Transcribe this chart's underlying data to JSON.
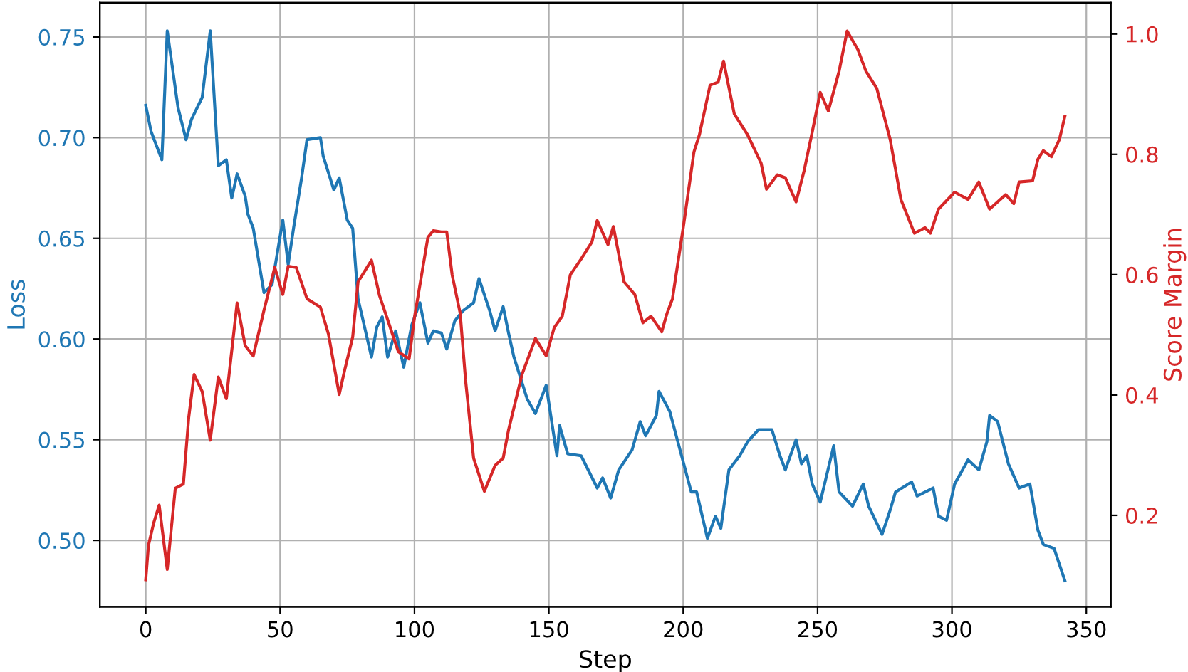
{
  "chart_data": {
    "type": "line",
    "xlabel": "Step",
    "ylabel": "Loss",
    "y2label": "Score Margin",
    "grid": true,
    "line_style": "solid",
    "marker": "none",
    "xlim": [
      -17.1,
      359.1
    ],
    "xticks": [
      0,
      50,
      100,
      150,
      200,
      250,
      300,
      350
    ],
    "ylim": [
      0.467,
      0.767
    ],
    "yticks": [
      {
        "value": 0.5,
        "label": "0.50"
      },
      {
        "value": 0.55,
        "label": "0.55"
      },
      {
        "value": 0.6,
        "label": "0.60"
      },
      {
        "value": 0.65,
        "label": "0.65"
      },
      {
        "value": 0.7,
        "label": "0.70"
      },
      {
        "value": 0.75,
        "label": "0.75"
      }
    ],
    "y2lim": [
      0.048,
      1.052
    ],
    "y2ticks": [
      {
        "value": 0.2,
        "label": "0.2"
      },
      {
        "value": 0.4,
        "label": "0.4"
      },
      {
        "value": 0.6,
        "label": "0.6"
      },
      {
        "value": 0.8,
        "label": "0.8"
      },
      {
        "value": 1.0,
        "label": "1.0"
      }
    ],
    "series": [
      {
        "color": "#1f77b4",
        "axis": "y",
        "x": [
          0,
          2,
          6,
          8,
          12,
          15,
          17,
          21,
          24,
          27,
          30,
          32,
          34,
          37,
          38,
          40,
          44,
          47,
          51,
          53,
          55,
          58,
          60,
          65,
          66,
          70,
          72,
          75,
          77,
          79,
          84,
          86,
          88,
          90,
          93,
          96,
          99,
          102,
          105,
          107,
          110,
          112,
          115,
          118,
          122,
          124,
          128,
          130,
          133,
          135,
          137,
          142,
          145,
          149,
          153,
          154,
          157,
          162,
          168,
          170,
          173,
          176,
          181,
          184,
          186,
          190,
          191,
          195,
          198,
          203,
          205,
          209,
          212,
          214,
          217,
          221,
          224,
          228,
          233,
          236,
          238,
          242,
          244,
          246,
          248,
          251,
          256,
          258,
          263,
          267,
          269,
          274,
          277,
          279,
          285,
          287,
          293,
          295,
          298,
          301,
          306,
          310,
          313,
          314,
          317,
          321,
          325,
          329,
          332,
          334,
          338,
          342
        ],
        "values": [
          0.716,
          0.703,
          0.689,
          0.753,
          0.715,
          0.699,
          0.709,
          0.72,
          0.753,
          0.686,
          0.689,
          0.67,
          0.682,
          0.671,
          0.662,
          0.655,
          0.623,
          0.627,
          0.659,
          0.637,
          0.655,
          0.68,
          0.699,
          0.7,
          0.691,
          0.674,
          0.68,
          0.659,
          0.655,
          0.62,
          0.591,
          0.606,
          0.611,
          0.591,
          0.604,
          0.586,
          0.607,
          0.618,
          0.598,
          0.604,
          0.603,
          0.595,
          0.609,
          0.614,
          0.618,
          0.63,
          0.614,
          0.604,
          0.616,
          0.603,
          0.591,
          0.57,
          0.563,
          0.577,
          0.542,
          0.557,
          0.543,
          0.542,
          0.526,
          0.531,
          0.521,
          0.535,
          0.545,
          0.559,
          0.552,
          0.562,
          0.574,
          0.564,
          0.549,
          0.524,
          0.524,
          0.501,
          0.512,
          0.506,
          0.535,
          0.542,
          0.549,
          0.555,
          0.555,
          0.542,
          0.535,
          0.55,
          0.538,
          0.542,
          0.528,
          0.519,
          0.547,
          0.524,
          0.517,
          0.528,
          0.517,
          0.503,
          0.515,
          0.524,
          0.529,
          0.522,
          0.526,
          0.512,
          0.51,
          0.528,
          0.54,
          0.535,
          0.549,
          0.562,
          0.559,
          0.538,
          0.526,
          0.528,
          0.505,
          0.498,
          0.496,
          0.48
        ]
      },
      {
        "color": "#d62728",
        "axis": "y2",
        "x": [
          0,
          1,
          3,
          5,
          8,
          11,
          14,
          16,
          18,
          21,
          24,
          27,
          30,
          34,
          37,
          40,
          44,
          48,
          51,
          53,
          56,
          60,
          65,
          68,
          72,
          74,
          77,
          79,
          84,
          87,
          91,
          94,
          98,
          100,
          105,
          107,
          110,
          112,
          114,
          117,
          119,
          122,
          126,
          130,
          133,
          135,
          140,
          145,
          149,
          152,
          155,
          158,
          162,
          166,
          168,
          172,
          174,
          178,
          182,
          185,
          188,
          192,
          194,
          196,
          200,
          204,
          206,
          210,
          213,
          215,
          219,
          224,
          229,
          231,
          235,
          238,
          242,
          245,
          248,
          251,
          254,
          258,
          261,
          265,
          268,
          272,
          277,
          281,
          286,
          290,
          292,
          295,
          301,
          306,
          310,
          314,
          320,
          323,
          325,
          330,
          332,
          334,
          337,
          340,
          342
        ],
        "values": [
          0.093,
          0.15,
          0.188,
          0.217,
          0.11,
          0.245,
          0.252,
          0.363,
          0.434,
          0.406,
          0.325,
          0.43,
          0.394,
          0.553,
          0.482,
          0.465,
          0.541,
          0.612,
          0.567,
          0.614,
          0.612,
          0.56,
          0.546,
          0.501,
          0.401,
          0.441,
          0.496,
          0.588,
          0.624,
          0.565,
          0.512,
          0.472,
          0.46,
          0.529,
          0.662,
          0.673,
          0.671,
          0.671,
          0.6,
          0.536,
          0.425,
          0.295,
          0.24,
          0.283,
          0.295,
          0.342,
          0.434,
          0.494,
          0.465,
          0.512,
          0.531,
          0.6,
          0.626,
          0.654,
          0.69,
          0.65,
          0.68,
          0.588,
          0.567,
          0.52,
          0.531,
          0.505,
          0.536,
          0.56,
          0.678,
          0.804,
          0.832,
          0.915,
          0.92,
          0.955,
          0.867,
          0.832,
          0.785,
          0.742,
          0.766,
          0.761,
          0.721,
          0.773,
          0.837,
          0.903,
          0.872,
          0.938,
          1.005,
          0.974,
          0.938,
          0.91,
          0.825,
          0.725,
          0.669,
          0.678,
          0.669,
          0.709,
          0.737,
          0.725,
          0.754,
          0.709,
          0.733,
          0.718,
          0.754,
          0.756,
          0.792,
          0.806,
          0.796,
          0.825,
          0.863
        ]
      }
    ]
  }
}
